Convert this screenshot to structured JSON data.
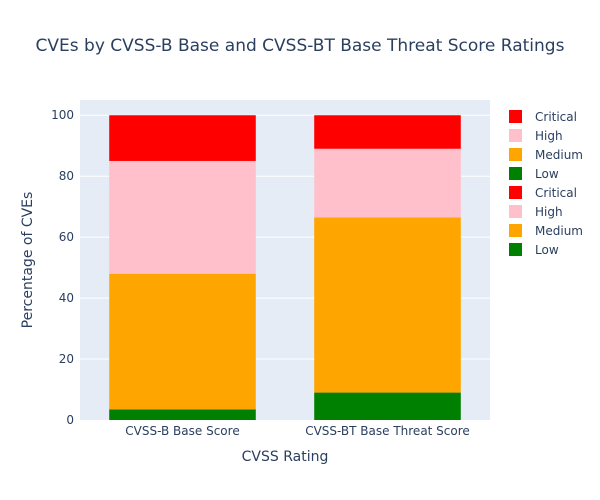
{
  "chart_data": {
    "type": "bar",
    "stacked": true,
    "title": "CVEs by CVSS-B Base and CVSS-BT Base Threat Score Ratings",
    "xlabel": "CVSS Rating",
    "ylabel": "Percentage of CVEs",
    "categories": [
      "CVSS-B Base Score",
      "CVSS-BT Base Threat Score"
    ],
    "ylim": [
      0,
      105
    ],
    "yticks": [
      0,
      20,
      40,
      60,
      80,
      100
    ],
    "grid": true,
    "legend_position": "right",
    "series": [
      {
        "name": "Low",
        "color": "#008000",
        "values": [
          3.5,
          0
        ]
      },
      {
        "name": "Medium",
        "color": "#FFA500",
        "values": [
          44.5,
          0
        ]
      },
      {
        "name": "High",
        "color": "#FFC0CB",
        "values": [
          37,
          0
        ]
      },
      {
        "name": "Critical",
        "color": "#FF0000",
        "values": [
          15,
          0
        ]
      },
      {
        "name": "Low",
        "color": "#008000",
        "values": [
          0,
          9
        ]
      },
      {
        "name": "Medium",
        "color": "#FFA500",
        "values": [
          0,
          57.5
        ]
      },
      {
        "name": "High",
        "color": "#FFC0CB",
        "values": [
          0,
          22.5
        ]
      },
      {
        "name": "Critical",
        "color": "#FF0000",
        "values": [
          0,
          11
        ]
      }
    ],
    "legend": [
      {
        "name": "Critical",
        "color": "#FF0000"
      },
      {
        "name": "High",
        "color": "#FFC0CB"
      },
      {
        "name": "Medium",
        "color": "#FFA500"
      },
      {
        "name": "Low",
        "color": "#008000"
      },
      {
        "name": "Critical",
        "color": "#FF0000"
      },
      {
        "name": "High",
        "color": "#FFC0CB"
      },
      {
        "name": "Medium",
        "color": "#FFA500"
      },
      {
        "name": "Low",
        "color": "#008000"
      }
    ],
    "plot_background": "#E5ECF6"
  }
}
